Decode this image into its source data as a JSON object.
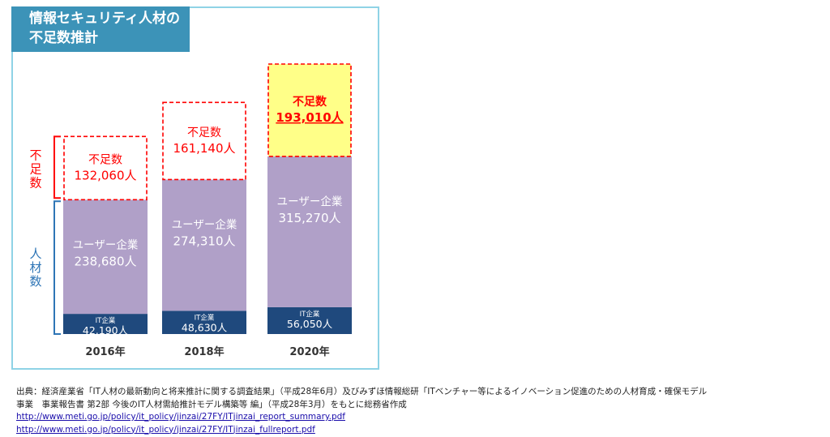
{
  "title": {
    "line1": "情報セキュリティ人材の",
    "line2": "不足数推計"
  },
  "colors": {
    "title_bg": "#3c93b8",
    "frame_border": "#8fd3e6",
    "it_segment": "#1f497d",
    "user_segment": "#b0a0c8",
    "shortage_border": "#ff0000",
    "shortage_highlight_fill": "#ffff88",
    "shortage_text": "#ff0000",
    "bracket_shortage": "#ff0000",
    "bracket_workers": "#2e75b6"
  },
  "chart_data": {
    "type": "bar",
    "stacked": true,
    "categories": [
      "2016年",
      "2018年",
      "2020年"
    ],
    "series": [
      {
        "name": "IT企業",
        "values": [
          42190,
          48630,
          56050
        ],
        "labels": [
          "42,190人",
          "48,630人",
          "56,050人"
        ]
      },
      {
        "name": "ユーザー企業",
        "values": [
          238680,
          274310,
          315270
        ],
        "labels": [
          "238,680人",
          "274,310人",
          "315,270人"
        ]
      },
      {
        "name": "不足数",
        "values": [
          132060,
          161140,
          193010
        ],
        "labels": [
          "132,060人",
          "161,140人",
          "193,010人"
        ]
      }
    ],
    "highlight_category": "2020年",
    "side_brackets": [
      {
        "label": "不足数",
        "color": "bracket_shortage"
      },
      {
        "label": "人材数",
        "color": "bracket_workers"
      }
    ]
  },
  "source": {
    "line1": "出典：経済産業省「IT人材の最新動向と将来推計に関する調査結果」（平成28年6月）及びみずほ情報総研「ITベンチャー等によるイノベーション促進のための人材育成・確保モデル",
    "line2": "事業　事業報告書 第2部 今後のIT人材需給推計モデル構築等 編」（平成28年3月）をもとに総務省作成",
    "link1": "http://www.meti.go.jp/policy/it_policy/jinzai/27FY/ITjinzai_report_summary.pdf",
    "link2": "http://www.meti.go.jp/policy/it_policy/jinzai/27FY/ITjinzai_fullreport.pdf"
  }
}
